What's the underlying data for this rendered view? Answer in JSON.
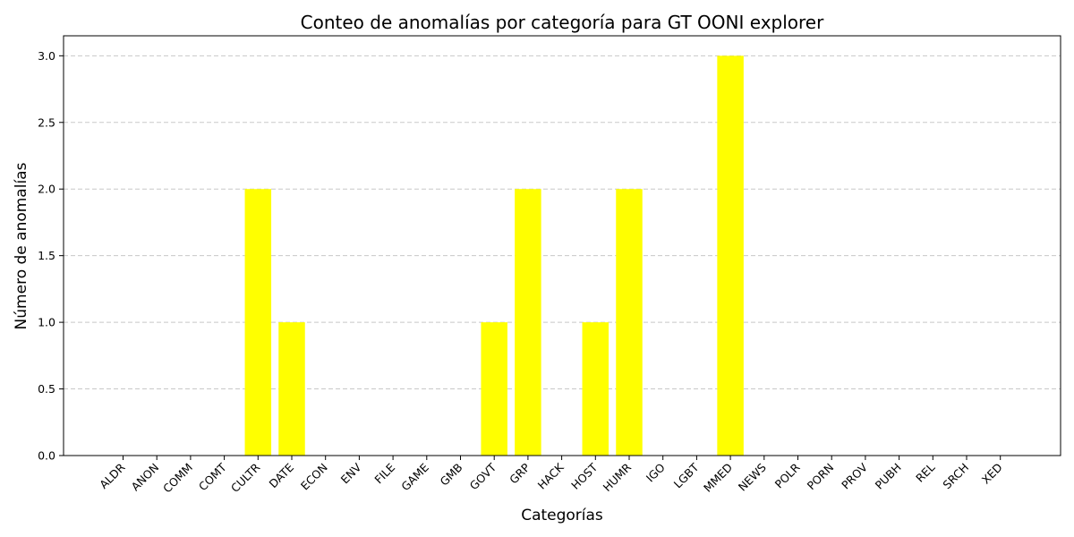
{
  "chart_data": {
    "type": "bar",
    "title": "Conteo de anomalías por categoría para GT OONI explorer",
    "xlabel": "Categorías",
    "ylabel": "Número de anomalías",
    "categories": [
      "ALDR",
      "ANON",
      "COMM",
      "COMT",
      "CULTR",
      "DATE",
      "ECON",
      "ENV",
      "FILE",
      "GAME",
      "GMB",
      "GOVT",
      "GRP",
      "HACK",
      "HOST",
      "HUMR",
      "IGO",
      "LGBT",
      "MMED",
      "NEWS",
      "POLR",
      "PORN",
      "PROV",
      "PUBH",
      "REL",
      "SRCH",
      "XED"
    ],
    "values": [
      0,
      0,
      0,
      0,
      2,
      1,
      0,
      0,
      0,
      0,
      0,
      1,
      2,
      0,
      1,
      2,
      0,
      0,
      3,
      0,
      0,
      0,
      0,
      0,
      0,
      0,
      0
    ],
    "ylim": [
      0,
      3.15
    ],
    "yticks": [
      "0.0",
      "0.5",
      "1.0",
      "1.5",
      "2.0",
      "2.5",
      "3.0"
    ],
    "grid": "y-dashed",
    "bar_color": "#ffff00"
  }
}
